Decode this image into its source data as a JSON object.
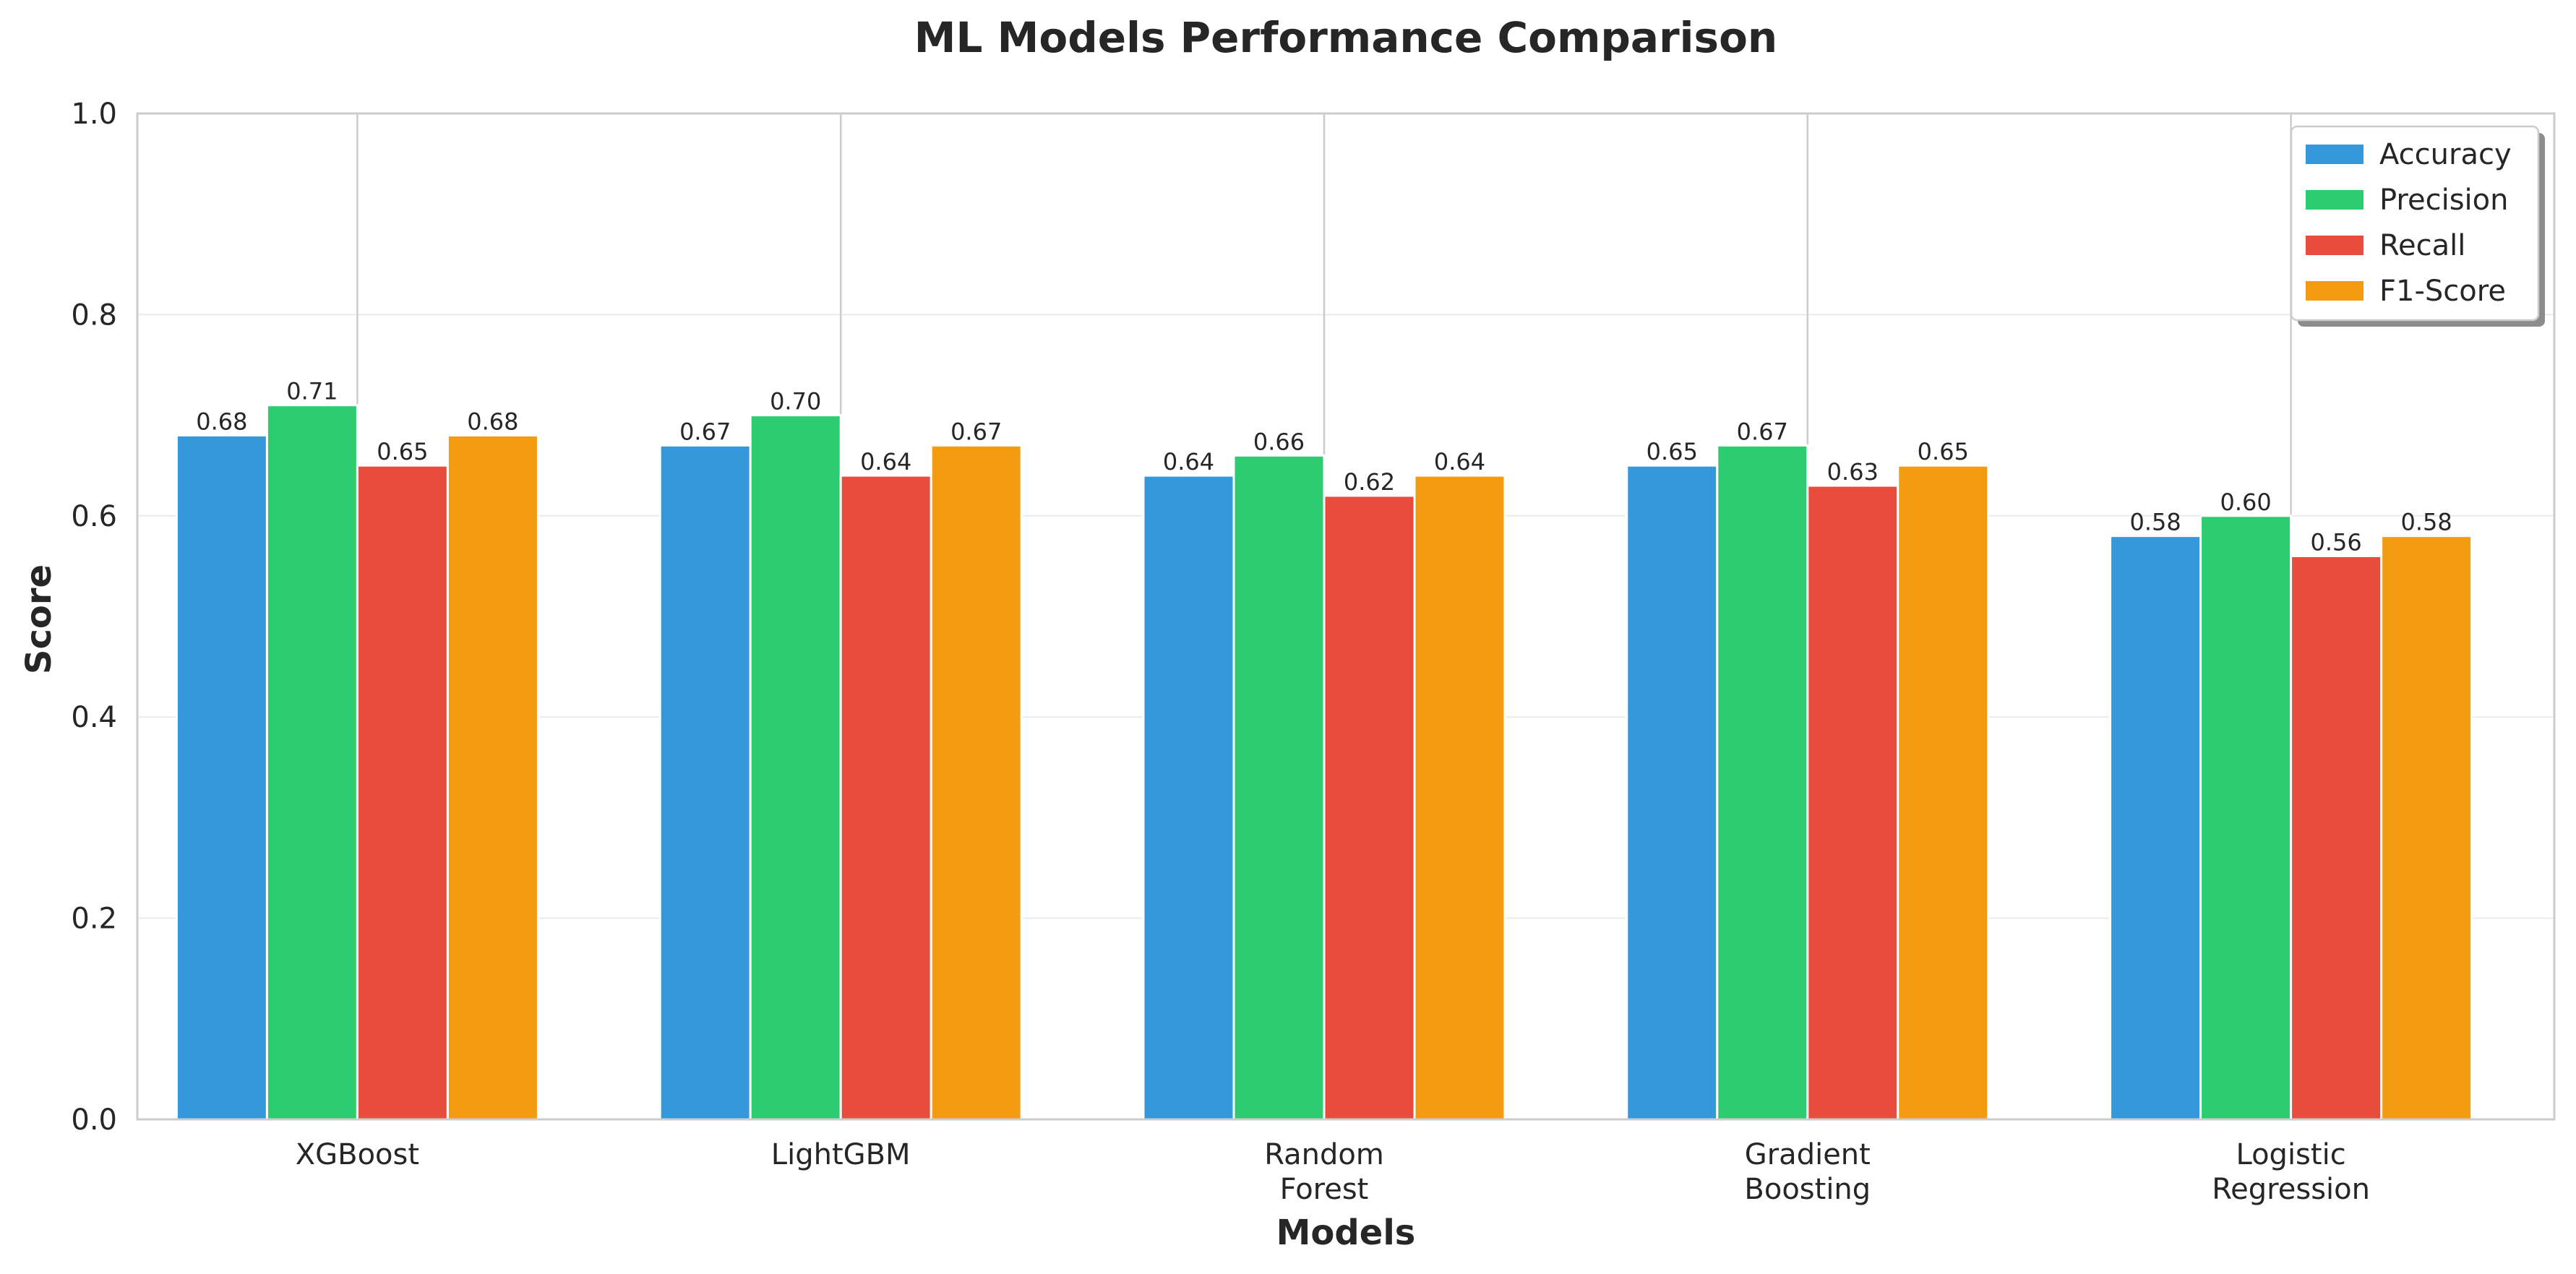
{
  "chart_data": {
    "type": "bar",
    "title": "ML Models Performance Comparison",
    "xlabel": "Models",
    "ylabel": "Score",
    "ylim": [
      0,
      1.0
    ],
    "yticks": [
      "0.0",
      "0.2",
      "0.4",
      "0.6",
      "0.8",
      "1.0"
    ],
    "categories": [
      [
        "XGBoost"
      ],
      [
        "LightGBM"
      ],
      [
        "Random",
        "Forest"
      ],
      [
        "Gradient",
        "Boosting"
      ],
      [
        "Logistic",
        "Regression"
      ]
    ],
    "series": [
      {
        "name": "Accuracy",
        "color": "#3498db",
        "values": [
          0.68,
          0.67,
          0.64,
          0.65,
          0.58
        ],
        "labels": [
          "0.68",
          "0.67",
          "0.64",
          "0.65",
          "0.58"
        ]
      },
      {
        "name": "Precision",
        "color": "#2ecc71",
        "values": [
          0.71,
          0.7,
          0.66,
          0.67,
          0.6
        ],
        "labels": [
          "0.71",
          "0.70",
          "0.66",
          "0.67",
          "0.60"
        ]
      },
      {
        "name": "Recall",
        "color": "#e74c3c",
        "values": [
          0.65,
          0.64,
          0.62,
          0.63,
          0.56
        ],
        "labels": [
          "0.65",
          "0.64",
          "0.62",
          "0.63",
          "0.56"
        ]
      },
      {
        "name": "F1-Score",
        "color": "#f39c12",
        "values": [
          0.68,
          0.67,
          0.64,
          0.65,
          0.58
        ],
        "labels": [
          "0.68",
          "0.67",
          "0.64",
          "0.65",
          "0.58"
        ]
      }
    ],
    "grid": true,
    "legend_position": "top-right"
  }
}
